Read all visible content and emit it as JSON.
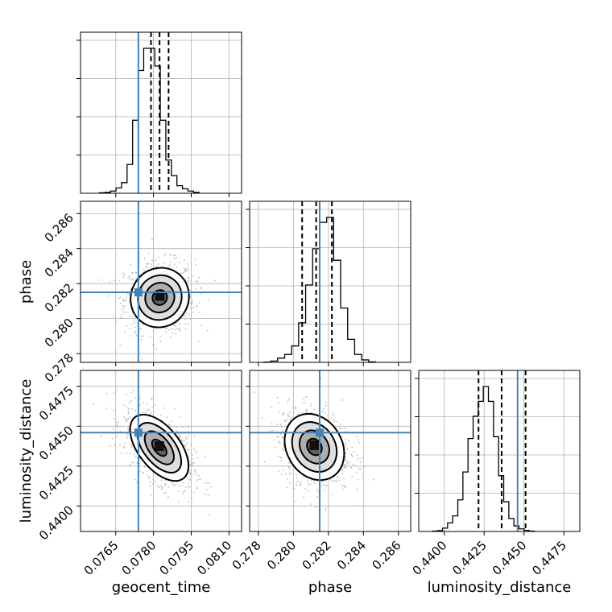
{
  "chart_data": {
    "type": "corner",
    "parameters": [
      "geocent_time",
      "phase",
      "luminosity_distance"
    ],
    "xlabels": [
      "geocent_time",
      "phase",
      "luminosity_distance"
    ],
    "ylabels": [
      "",
      "phase",
      "luminosity_distance"
    ],
    "truths": {
      "geocent_time": 0.0774,
      "phase": 0.2815,
      "luminosity_distance": 0.4446
    },
    "colors": {
      "truth": "#4682b4",
      "grid": "#b0b0b0",
      "frame": "#000000"
    },
    "ranges": {
      "geocent_time": [
        0.0751,
        0.0815
      ],
      "phase": [
        0.2775,
        0.2867
      ],
      "luminosity_distance": [
        0.4384,
        0.4485
      ]
    },
    "ticks": {
      "geocent_time": [
        {
          "v": 0.0765,
          "label": "0.0765"
        },
        {
          "v": 0.078,
          "label": "0.0780"
        },
        {
          "v": 0.0795,
          "label": "0.0795"
        },
        {
          "v": 0.081,
          "label": "0.0810"
        }
      ],
      "phase": [
        {
          "v": 0.278,
          "label": "0.278"
        },
        {
          "v": 0.28,
          "label": "0.280"
        },
        {
          "v": 0.282,
          "label": "0.282"
        },
        {
          "v": 0.284,
          "label": "0.284"
        },
        {
          "v": 0.286,
          "label": "0.286"
        }
      ],
      "luminosity_distance": [
        {
          "v": 0.44,
          "label": "0.4400"
        },
        {
          "v": 0.4425,
          "label": "0.4425"
        },
        {
          "v": 0.445,
          "label": "0.4450"
        },
        {
          "v": 0.4475,
          "label": "0.4475"
        }
      ]
    },
    "quantiles": {
      "geocent_time": [
        0.0779,
        0.07824,
        0.0786
      ],
      "phase": [
        0.2805,
        0.2813,
        0.2822
      ],
      "luminosity_distance": [
        0.44215,
        0.4436,
        0.4451
      ]
    },
    "hist_steps": [
      0,
      0.25,
      0.5,
      0.75
    ],
    "histograms": {
      "geocent_time": {
        "start": 0.07585,
        "width": 0.00022,
        "counts": [
          2,
          4,
          10,
          24,
          48,
          130,
          330,
          555,
          655,
          655,
          575,
          330,
          150,
          80,
          34,
          20,
          10,
          4
        ]
      },
      "phase": {
        "start": 0.2783,
        "width": 0.0004,
        "counts": [
          2,
          8,
          26,
          48,
          100,
          240,
          470,
          690,
          850,
          880,
          620,
          330,
          140,
          48,
          15,
          3
        ]
      },
      "luminosity_distance": {
        "start": 0.43925,
        "width": 0.00032,
        "counts": [
          2,
          5,
          18,
          46,
          84,
          170,
          320,
          500,
          620,
          700,
          780,
          700,
          510,
          300,
          160,
          70,
          30,
          14,
          6,
          2
        ]
      }
    },
    "pairs": [
      {
        "x": "geocent_time",
        "y": "phase",
        "center": [
          0.07825,
          0.2812
        ],
        "sigma": [
          0.00058,
          0.00085
        ],
        "rho": 0.05
      },
      {
        "x": "geocent_time",
        "y": "luminosity_distance",
        "center": [
          0.07823,
          0.44365
        ],
        "sigma": [
          0.00058,
          0.00104
        ],
        "rho": -0.55
      },
      {
        "x": "phase",
        "y": "luminosity_distance",
        "center": [
          0.2812,
          0.4437
        ],
        "sigma": [
          0.00085,
          0.00104
        ],
        "rho": -0.2
      }
    ],
    "contour_levels": [
      0.5,
      1.0,
      1.5,
      2.0
    ]
  }
}
